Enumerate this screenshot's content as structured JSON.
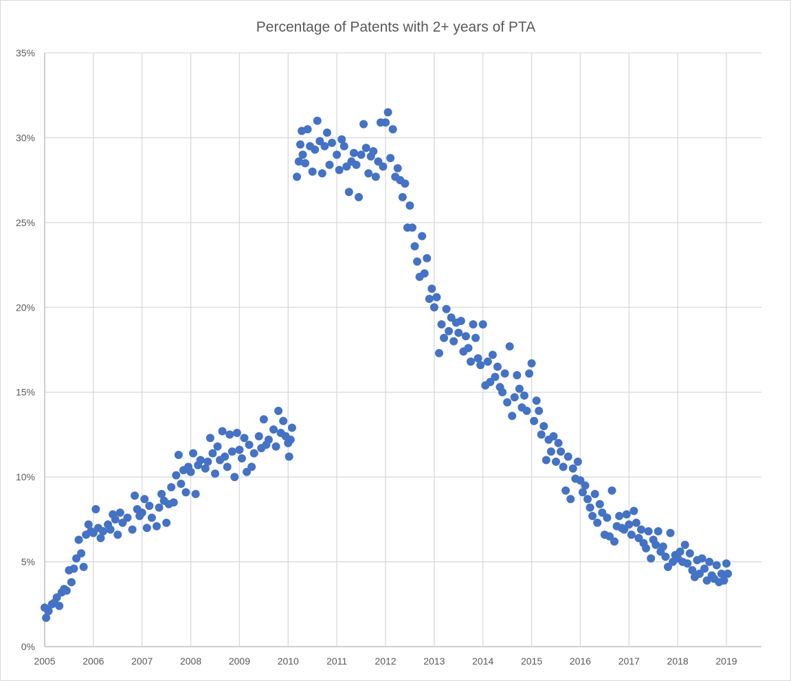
{
  "chart_data": {
    "type": "scatter",
    "title": "Percentage of Patents with 2+ years of PTA",
    "xlabel": "",
    "ylabel": "",
    "xlim": [
      2005,
      2019.72
    ],
    "ylim": [
      0,
      35
    ],
    "x_ticks": [
      2005,
      2006,
      2007,
      2008,
      2009,
      2010,
      2011,
      2012,
      2013,
      2014,
      2015,
      2016,
      2017,
      2018,
      2019
    ],
    "x_tick_labels": [
      "2005",
      "2006",
      "2007",
      "2008",
      "2009",
      "2010",
      "2011",
      "2012",
      "2013",
      "2014",
      "2015",
      "2016",
      "2017",
      "2018",
      "2019"
    ],
    "y_ticks": [
      0,
      5,
      10,
      15,
      20,
      25,
      30,
      35
    ],
    "y_tick_labels": [
      "0%",
      "5%",
      "10%",
      "15%",
      "20%",
      "25%",
      "30%",
      "35%"
    ],
    "grid": true,
    "legend": "none",
    "marker_color": "#4472C4",
    "series": [
      {
        "name": "Percentage",
        "points": [
          [
            2005.0,
            2.3
          ],
          [
            2005.03,
            1.7
          ],
          [
            2005.08,
            2.1
          ],
          [
            2005.15,
            2.5
          ],
          [
            2005.2,
            2.6
          ],
          [
            2005.25,
            2.9
          ],
          [
            2005.3,
            2.4
          ],
          [
            2005.35,
            3.2
          ],
          [
            2005.4,
            3.4
          ],
          [
            2005.45,
            3.3
          ],
          [
            2005.5,
            4.5
          ],
          [
            2005.55,
            3.8
          ],
          [
            2005.6,
            4.6
          ],
          [
            2005.65,
            5.2
          ],
          [
            2005.7,
            6.3
          ],
          [
            2005.75,
            5.5
          ],
          [
            2005.8,
            4.7
          ],
          [
            2005.85,
            6.6
          ],
          [
            2005.9,
            7.2
          ],
          [
            2005.95,
            6.8
          ],
          [
            2006.0,
            6.7
          ],
          [
            2006.05,
            8.1
          ],
          [
            2006.1,
            7.0
          ],
          [
            2006.15,
            6.4
          ],
          [
            2006.2,
            6.8
          ],
          [
            2006.3,
            7.2
          ],
          [
            2006.35,
            6.9
          ],
          [
            2006.4,
            7.8
          ],
          [
            2006.45,
            7.5
          ],
          [
            2006.5,
            6.6
          ],
          [
            2006.55,
            7.9
          ],
          [
            2006.6,
            7.3
          ],
          [
            2006.7,
            7.6
          ],
          [
            2006.8,
            6.9
          ],
          [
            2006.85,
            8.9
          ],
          [
            2006.9,
            8.1
          ],
          [
            2006.95,
            7.7
          ],
          [
            2007.0,
            7.9
          ],
          [
            2007.05,
            8.7
          ],
          [
            2007.1,
            7.0
          ],
          [
            2007.15,
            8.3
          ],
          [
            2007.2,
            7.6
          ],
          [
            2007.3,
            7.1
          ],
          [
            2007.35,
            8.2
          ],
          [
            2007.4,
            9.0
          ],
          [
            2007.45,
            8.6
          ],
          [
            2007.5,
            7.3
          ],
          [
            2007.55,
            8.4
          ],
          [
            2007.6,
            9.4
          ],
          [
            2007.65,
            8.5
          ],
          [
            2007.7,
            10.1
          ],
          [
            2007.75,
            11.3
          ],
          [
            2007.8,
            9.6
          ],
          [
            2007.85,
            10.4
          ],
          [
            2007.9,
            9.1
          ],
          [
            2007.95,
            10.6
          ],
          [
            2008.0,
            10.3
          ],
          [
            2008.05,
            11.4
          ],
          [
            2008.1,
            9.0
          ],
          [
            2008.15,
            10.7
          ],
          [
            2008.2,
            11.0
          ],
          [
            2008.3,
            10.5
          ],
          [
            2008.35,
            10.9
          ],
          [
            2008.4,
            12.3
          ],
          [
            2008.45,
            11.4
          ],
          [
            2008.5,
            10.2
          ],
          [
            2008.55,
            11.8
          ],
          [
            2008.6,
            11.0
          ],
          [
            2008.65,
            12.7
          ],
          [
            2008.7,
            11.2
          ],
          [
            2008.75,
            10.6
          ],
          [
            2008.8,
            12.5
          ],
          [
            2008.85,
            11.5
          ],
          [
            2008.9,
            10.0
          ],
          [
            2008.95,
            12.6
          ],
          [
            2009.0,
            11.6
          ],
          [
            2009.05,
            11.1
          ],
          [
            2009.1,
            12.3
          ],
          [
            2009.15,
            10.3
          ],
          [
            2009.2,
            11.9
          ],
          [
            2009.25,
            10.6
          ],
          [
            2009.3,
            11.4
          ],
          [
            2009.4,
            12.4
          ],
          [
            2009.45,
            11.7
          ],
          [
            2009.5,
            13.4
          ],
          [
            2009.55,
            11.9
          ],
          [
            2009.6,
            12.2
          ],
          [
            2009.7,
            12.8
          ],
          [
            2009.75,
            11.8
          ],
          [
            2009.8,
            13.9
          ],
          [
            2009.85,
            12.6
          ],
          [
            2009.9,
            13.3
          ],
          [
            2009.95,
            12.4
          ],
          [
            2010.0,
            12.0
          ],
          [
            2010.02,
            11.2
          ],
          [
            2010.05,
            12.2
          ],
          [
            2010.08,
            12.9
          ],
          [
            2010.18,
            27.7
          ],
          [
            2010.22,
            28.6
          ],
          [
            2010.25,
            29.6
          ],
          [
            2010.28,
            30.4
          ],
          [
            2010.3,
            29.0
          ],
          [
            2010.35,
            28.5
          ],
          [
            2010.4,
            30.5
          ],
          [
            2010.45,
            29.5
          ],
          [
            2010.5,
            28.0
          ],
          [
            2010.55,
            29.3
          ],
          [
            2010.6,
            31.0
          ],
          [
            2010.65,
            29.8
          ],
          [
            2010.7,
            27.9
          ],
          [
            2010.75,
            29.5
          ],
          [
            2010.8,
            30.3
          ],
          [
            2010.85,
            28.4
          ],
          [
            2010.9,
            29.7
          ],
          [
            2011.0,
            29.0
          ],
          [
            2011.05,
            28.1
          ],
          [
            2011.1,
            29.9
          ],
          [
            2011.15,
            29.5
          ],
          [
            2011.2,
            28.3
          ],
          [
            2011.25,
            26.8
          ],
          [
            2011.3,
            28.6
          ],
          [
            2011.35,
            29.1
          ],
          [
            2011.4,
            28.4
          ],
          [
            2011.45,
            26.5
          ],
          [
            2011.5,
            29.0
          ],
          [
            2011.55,
            30.8
          ],
          [
            2011.6,
            29.4
          ],
          [
            2011.65,
            27.9
          ],
          [
            2011.7,
            28.9
          ],
          [
            2011.75,
            29.2
          ],
          [
            2011.8,
            27.7
          ],
          [
            2011.85,
            28.6
          ],
          [
            2011.9,
            30.9
          ],
          [
            2011.95,
            28.3
          ],
          [
            2012.0,
            30.9
          ],
          [
            2012.05,
            31.5
          ],
          [
            2012.1,
            28.8
          ],
          [
            2012.15,
            30.5
          ],
          [
            2012.2,
            27.7
          ],
          [
            2012.25,
            28.2
          ],
          [
            2012.3,
            27.5
          ],
          [
            2012.35,
            26.5
          ],
          [
            2012.4,
            27.3
          ],
          [
            2012.45,
            24.7
          ],
          [
            2012.5,
            26.0
          ],
          [
            2012.55,
            24.7
          ],
          [
            2012.6,
            23.6
          ],
          [
            2012.65,
            22.7
          ],
          [
            2012.7,
            21.8
          ],
          [
            2012.75,
            24.2
          ],
          [
            2012.8,
            22.0
          ],
          [
            2012.85,
            22.9
          ],
          [
            2012.9,
            20.5
          ],
          [
            2012.95,
            21.1
          ],
          [
            2013.0,
            20.0
          ],
          [
            2013.05,
            20.6
          ],
          [
            2013.1,
            17.3
          ],
          [
            2013.15,
            19.0
          ],
          [
            2013.2,
            18.2
          ],
          [
            2013.25,
            19.9
          ],
          [
            2013.3,
            18.6
          ],
          [
            2013.35,
            19.4
          ],
          [
            2013.4,
            18.0
          ],
          [
            2013.45,
            19.1
          ],
          [
            2013.5,
            18.5
          ],
          [
            2013.55,
            19.2
          ],
          [
            2013.6,
            17.4
          ],
          [
            2013.65,
            18.3
          ],
          [
            2013.7,
            17.6
          ],
          [
            2013.75,
            16.8
          ],
          [
            2013.8,
            19.0
          ],
          [
            2013.85,
            18.2
          ],
          [
            2013.9,
            17.0
          ],
          [
            2013.95,
            16.6
          ],
          [
            2014.0,
            19.0
          ],
          [
            2014.05,
            15.4
          ],
          [
            2014.1,
            16.8
          ],
          [
            2014.15,
            15.6
          ],
          [
            2014.2,
            17.2
          ],
          [
            2014.25,
            15.9
          ],
          [
            2014.3,
            16.5
          ],
          [
            2014.35,
            15.3
          ],
          [
            2014.4,
            15.0
          ],
          [
            2014.45,
            16.1
          ],
          [
            2014.5,
            14.4
          ],
          [
            2014.55,
            17.7
          ],
          [
            2014.6,
            13.6
          ],
          [
            2014.65,
            14.7
          ],
          [
            2014.7,
            16.0
          ],
          [
            2014.75,
            15.2
          ],
          [
            2014.8,
            14.1
          ],
          [
            2014.85,
            14.8
          ],
          [
            2014.9,
            13.9
          ],
          [
            2014.95,
            16.1
          ],
          [
            2015.0,
            16.7
          ],
          [
            2015.05,
            13.3
          ],
          [
            2015.1,
            14.5
          ],
          [
            2015.15,
            13.9
          ],
          [
            2015.2,
            12.5
          ],
          [
            2015.25,
            13.0
          ],
          [
            2015.3,
            11.0
          ],
          [
            2015.35,
            12.2
          ],
          [
            2015.4,
            11.5
          ],
          [
            2015.45,
            12.4
          ],
          [
            2015.5,
            10.9
          ],
          [
            2015.55,
            12.0
          ],
          [
            2015.6,
            11.5
          ],
          [
            2015.65,
            10.6
          ],
          [
            2015.7,
            9.2
          ],
          [
            2015.75,
            11.2
          ],
          [
            2015.8,
            8.7
          ],
          [
            2015.85,
            10.5
          ],
          [
            2015.9,
            9.9
          ],
          [
            2015.95,
            10.9
          ],
          [
            2016.0,
            9.8
          ],
          [
            2016.05,
            9.1
          ],
          [
            2016.1,
            9.5
          ],
          [
            2016.15,
            8.7
          ],
          [
            2016.2,
            8.2
          ],
          [
            2016.25,
            7.7
          ],
          [
            2016.3,
            9.0
          ],
          [
            2016.35,
            7.3
          ],
          [
            2016.4,
            8.4
          ],
          [
            2016.45,
            7.9
          ],
          [
            2016.5,
            6.6
          ],
          [
            2016.55,
            7.6
          ],
          [
            2016.6,
            6.5
          ],
          [
            2016.65,
            9.2
          ],
          [
            2016.7,
            6.2
          ],
          [
            2016.75,
            7.1
          ],
          [
            2016.8,
            7.7
          ],
          [
            2016.85,
            7.0
          ],
          [
            2016.9,
            6.9
          ],
          [
            2016.95,
            7.8
          ],
          [
            2017.0,
            7.2
          ],
          [
            2017.05,
            6.6
          ],
          [
            2017.1,
            8.0
          ],
          [
            2017.15,
            7.3
          ],
          [
            2017.2,
            6.4
          ],
          [
            2017.25,
            6.9
          ],
          [
            2017.3,
            6.1
          ],
          [
            2017.35,
            5.8
          ],
          [
            2017.4,
            6.8
          ],
          [
            2017.45,
            5.2
          ],
          [
            2017.5,
            6.3
          ],
          [
            2017.55,
            6.0
          ],
          [
            2017.6,
            6.8
          ],
          [
            2017.65,
            5.6
          ],
          [
            2017.7,
            5.9
          ],
          [
            2017.75,
            5.3
          ],
          [
            2017.8,
            4.7
          ],
          [
            2017.85,
            6.7
          ],
          [
            2017.9,
            5.0
          ],
          [
            2017.95,
            5.4
          ],
          [
            2018.0,
            5.2
          ],
          [
            2018.05,
            5.6
          ],
          [
            2018.1,
            5.0
          ],
          [
            2018.15,
            6.0
          ],
          [
            2018.2,
            4.9
          ],
          [
            2018.25,
            5.5
          ],
          [
            2018.3,
            4.5
          ],
          [
            2018.35,
            4.1
          ],
          [
            2018.4,
            5.1
          ],
          [
            2018.45,
            4.3
          ],
          [
            2018.5,
            5.2
          ],
          [
            2018.55,
            4.6
          ],
          [
            2018.6,
            3.9
          ],
          [
            2018.65,
            5.0
          ],
          [
            2018.7,
            4.2
          ],
          [
            2018.75,
            4.0
          ],
          [
            2018.8,
            4.8
          ],
          [
            2018.85,
            3.8
          ],
          [
            2018.9,
            4.3
          ],
          [
            2018.95,
            3.9
          ],
          [
            2019.0,
            4.9
          ],
          [
            2019.03,
            4.3
          ]
        ]
      }
    ]
  }
}
